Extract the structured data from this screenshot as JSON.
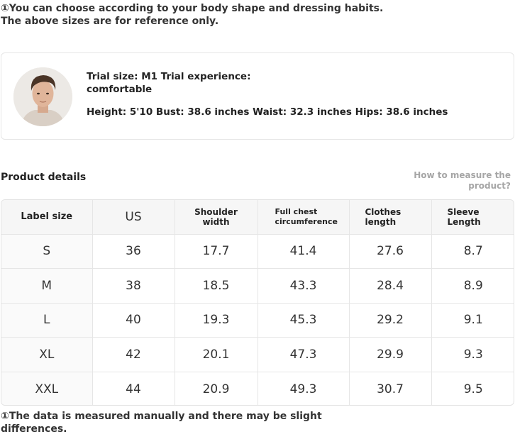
{
  "notes": {
    "top_line1": "①You can choose according to your body shape and dressing habits.",
    "top_line2": "The above sizes are for reference only.",
    "bottom_line1": "①The data is measured manually and there may be slight",
    "bottom_line2": "differences."
  },
  "model": {
    "avatar_icon": "model-portrait",
    "trial_line1": "Trial size: M1 Trial experience:",
    "trial_line2": "comfortable",
    "measurements": "Height: 5'10 Bust: 38.6 inches Waist: 32.3 inches Hips: 38.6 inches"
  },
  "details": {
    "title": "Product details",
    "how_line1": "How to measure the",
    "how_line2": "product?"
  },
  "table": {
    "headers": {
      "label_size": "Label size",
      "us": "US",
      "shoulder_1": "Shoulder",
      "shoulder_2": "width",
      "chest_1": "Full chest",
      "chest_2": "circumference",
      "length_1": "Clothes",
      "length_2": "length",
      "sleeve_1": "Sleeve",
      "sleeve_2": "Length"
    },
    "rows": [
      [
        "S",
        "36",
        "17.7",
        "41.4",
        "27.6",
        "8.7"
      ],
      [
        "M",
        "38",
        "18.5",
        "43.3",
        "28.4",
        "8.9"
      ],
      [
        "L",
        "40",
        "19.3",
        "45.3",
        "29.2",
        "9.1"
      ],
      [
        "XL",
        "42",
        "20.1",
        "47.3",
        "29.9",
        "9.3"
      ],
      [
        "XXL",
        "44",
        "20.9",
        "49.3",
        "30.7",
        "9.5"
      ]
    ]
  }
}
